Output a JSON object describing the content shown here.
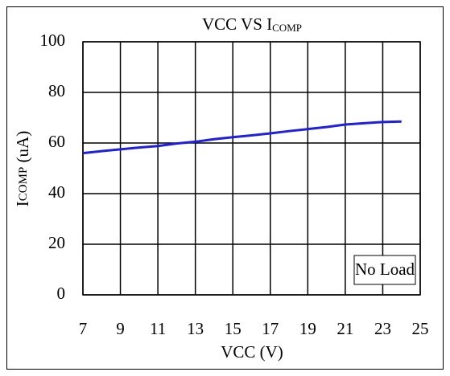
{
  "chart_data": {
    "type": "line",
    "title": "VCC VS I",
    "title_sub": "COMP",
    "xlabel": "VCC (V)",
    "ylabel": "I",
    "ylabel_sub": "COMP",
    "ylabel_unit": " (uA)",
    "annotation": "No Load",
    "x": [
      7,
      8,
      9,
      10,
      11,
      12,
      13,
      14,
      15,
      16,
      17,
      18,
      19,
      20,
      21,
      22,
      23,
      24
    ],
    "series": [
      {
        "name": "ICOMP",
        "color": "#1f1fe0",
        "values": [
          56,
          56.8,
          57.5,
          58.2,
          58.8,
          59.8,
          60.5,
          61.5,
          62.3,
          63,
          63.8,
          64.7,
          65.5,
          66.3,
          67.3,
          67.8,
          68.3,
          68.5
        ]
      }
    ],
    "xlim": [
      7,
      25
    ],
    "xticks": [
      7,
      9,
      11,
      13,
      15,
      17,
      19,
      21,
      23,
      25
    ],
    "ylim": [
      0,
      100
    ],
    "yticks": [
      0,
      20,
      40,
      60,
      80,
      100
    ],
    "grid": true
  }
}
